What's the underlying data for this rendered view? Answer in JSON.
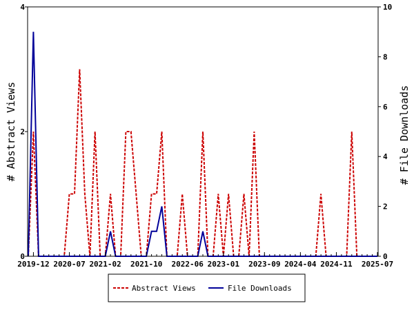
{
  "chart_data": {
    "type": "line",
    "x": [
      "2019-11",
      "2019-12",
      "2020-01",
      "2020-02",
      "2020-03",
      "2020-04",
      "2020-05",
      "2020-06",
      "2020-07",
      "2020-08",
      "2020-09",
      "2020-10",
      "2020-11",
      "2020-12",
      "2021-01",
      "2021-02",
      "2021-03",
      "2021-04",
      "2021-05",
      "2021-06",
      "2021-07",
      "2021-08",
      "2021-09",
      "2021-10",
      "2021-11",
      "2021-12",
      "2022-01",
      "2022-02",
      "2022-03",
      "2022-04",
      "2022-05",
      "2022-06",
      "2022-07",
      "2022-08",
      "2022-09",
      "2022-10",
      "2022-11",
      "2022-12",
      "2023-01",
      "2023-02",
      "2023-03",
      "2023-04",
      "2023-05",
      "2023-06",
      "2023-07",
      "2023-08",
      "2023-09",
      "2023-10",
      "2023-11",
      "2023-12",
      "2024-01",
      "2024-02",
      "2024-03",
      "2024-04",
      "2024-05",
      "2024-06",
      "2024-07",
      "2024-08",
      "2024-09",
      "2024-10",
      "2024-11",
      "2024-12",
      "2025-01",
      "2025-02",
      "2025-03",
      "2025-04",
      "2025-05",
      "2025-06",
      "2025-07"
    ],
    "series": [
      {
        "name": "Abstract Views",
        "axis": "left",
        "color": "#cc0000",
        "dash": "dashed",
        "values": [
          0,
          2,
          0,
          0,
          0,
          0,
          0,
          0,
          1,
          1,
          3,
          1,
          0,
          2,
          0,
          0,
          1,
          0,
          0,
          2,
          2,
          1,
          0,
          0,
          1,
          1,
          2,
          0,
          0,
          0,
          1,
          0,
          0,
          0,
          2,
          0,
          0,
          1,
          0,
          1,
          0,
          0,
          1,
          0,
          2,
          0,
          0,
          0,
          0,
          0,
          0,
          0,
          0,
          0,
          0,
          0,
          0,
          1,
          0,
          0,
          0,
          0,
          0,
          2,
          0,
          0,
          0,
          0,
          0
        ]
      },
      {
        "name": "File Downloads",
        "axis": "right",
        "color": "#000099",
        "dash": "solid",
        "values": [
          0,
          9,
          0,
          0,
          0,
          0,
          0,
          0,
          0,
          0,
          0,
          0,
          0,
          0,
          0,
          0,
          1,
          0,
          0,
          0,
          0,
          0,
          0,
          0,
          1,
          1,
          2,
          0,
          0,
          0,
          0,
          0,
          0,
          0,
          1,
          0,
          0,
          0,
          0,
          0,
          0,
          0,
          0,
          0,
          0,
          0,
          0,
          0,
          0,
          0,
          0,
          0,
          0,
          0,
          0,
          0,
          0,
          0,
          0,
          0,
          0,
          0,
          0,
          0,
          0,
          0,
          0,
          0,
          0
        ]
      }
    ],
    "x_tick_labels": [
      "2019-12",
      "2020-07",
      "2021-02",
      "2021-10",
      "2022-06",
      "2023-01",
      "2023-09",
      "2024-04",
      "2024-11",
      "2025-07"
    ],
    "ylabel": "# Abstract Views",
    "y2label": "# File Downloads",
    "ylim": [
      0,
      4
    ],
    "y_ticks": [
      "0",
      "2",
      "4"
    ],
    "y2lim": [
      0,
      10
    ],
    "y2_ticks": [
      "0",
      "2",
      "4",
      "6",
      "8",
      "10"
    ],
    "grid": false,
    "legend_position": "bottom-center"
  }
}
